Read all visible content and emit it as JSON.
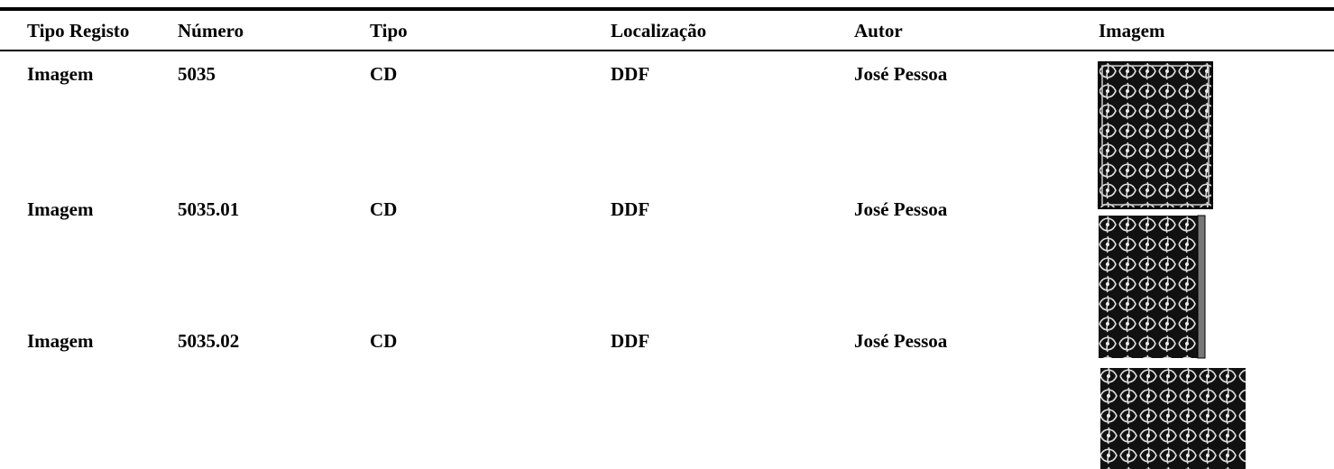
{
  "table": {
    "header": [
      "Tipo Registo",
      "Número",
      "Tipo",
      "Localização",
      "Autor",
      "Imagem"
    ],
    "rows": [
      [
        "Imagem",
        "5035",
        "CD",
        "DDF",
        "José Pessoa"
      ],
      [
        "Imagem",
        "5035.01",
        "CD",
        "DDF",
        "José Pessoa"
      ],
      [
        "Imagem",
        "5035.02",
        "CD",
        "DDF",
        "José Pessoa"
      ]
    ]
  }
}
